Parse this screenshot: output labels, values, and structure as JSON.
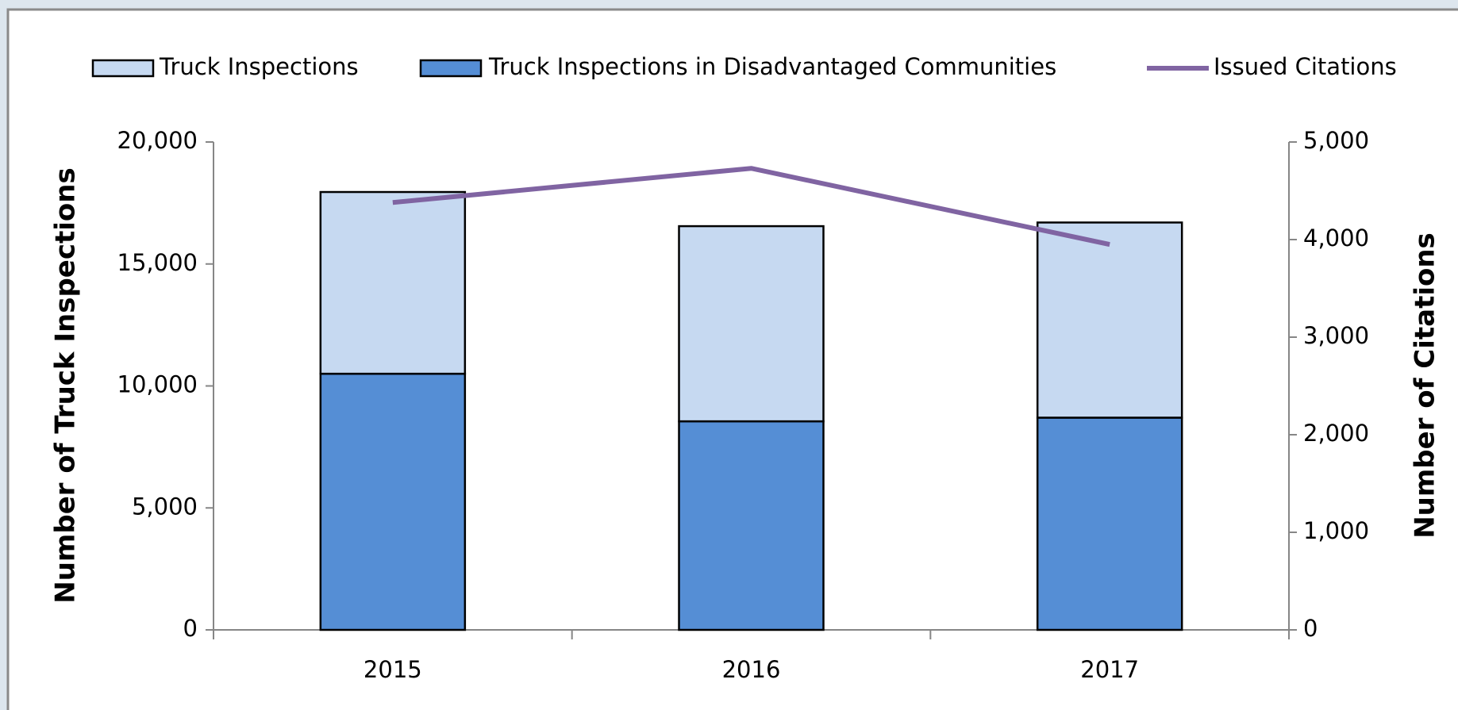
{
  "chart_data": {
    "type": "bar",
    "categories": [
      "2015",
      "2016",
      "2017"
    ],
    "series": [
      {
        "name": "Truck Inspections",
        "type": "bar",
        "color": "#c6d9f1",
        "values": [
          7450,
          8000,
          8000
        ]
      },
      {
        "name": "Truck Inspections in Disadvantaged Communities",
        "type": "bar",
        "color": "#558ed5",
        "values": [
          10500,
          8550,
          8700
        ]
      },
      {
        "name": "Issued Citations",
        "type": "line",
        "axis": "y2",
        "color": "#8064a2",
        "values": [
          4380,
          4730,
          3950
        ]
      }
    ],
    "y_label": "Number of Truck Inspections",
    "y2_label": "Number of Citations",
    "ylim": [
      0,
      20000
    ],
    "yticks": [
      0,
      {
        "value": 5000,
        "label": "5,000"
      },
      {
        "value": 10000,
        "label": "10,000"
      },
      {
        "value": 15000,
        "label": "15,000"
      },
      {
        "value": 20000,
        "label": "20,000"
      }
    ],
    "y2lim": [
      0,
      5000
    ],
    "y2ticks": [
      0,
      {
        "value": 1000,
        "label": "1,000"
      },
      {
        "value": 2000,
        "label": "2,000"
      },
      {
        "value": 3000,
        "label": "3,000"
      },
      {
        "value": 4000,
        "label": "4,000"
      },
      {
        "value": 5000,
        "label": "5,000"
      }
    ],
    "legend": "top"
  }
}
